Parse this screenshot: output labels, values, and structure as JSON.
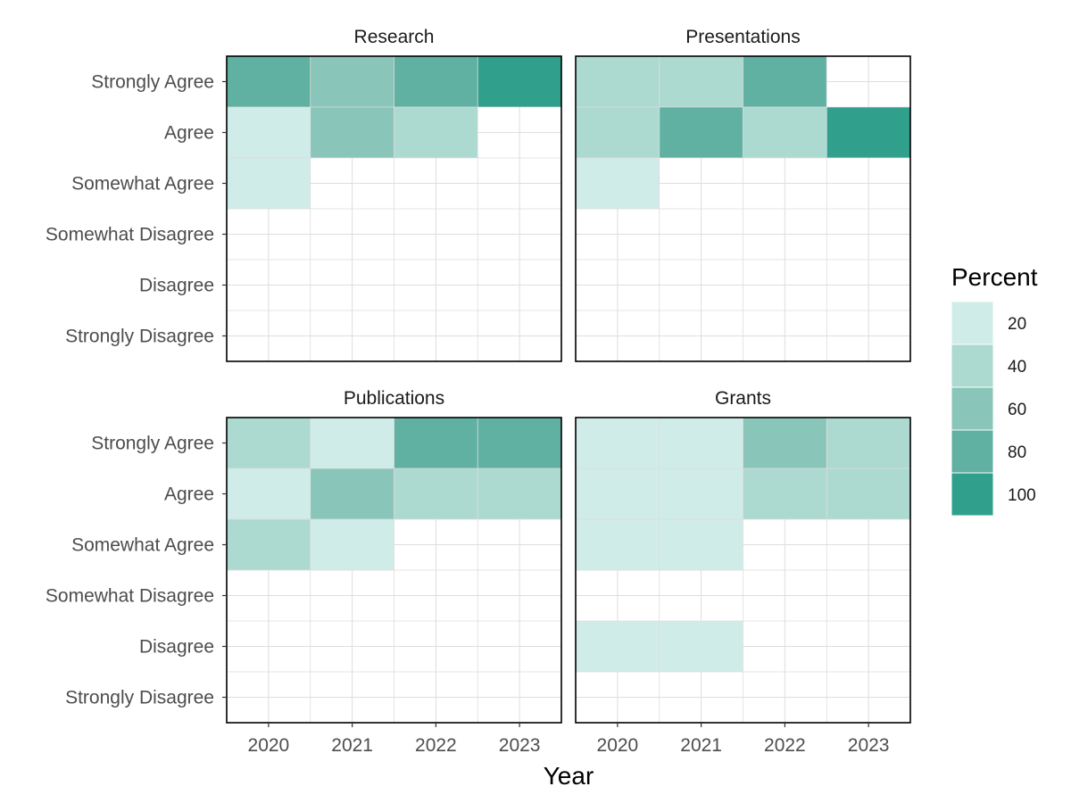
{
  "chart_data": {
    "type": "heatmap",
    "xlabel": "Year",
    "x_categories": [
      "2020",
      "2021",
      "2022",
      "2023"
    ],
    "y_categories": [
      "Strongly Agree",
      "Agree",
      "Somewhat Agree",
      "Somewhat Disagree",
      "Disagree",
      "Strongly Disagree"
    ],
    "grid": true,
    "legend": {
      "title": "Percent",
      "position": "right",
      "breaks": [
        20,
        40,
        60,
        80,
        100
      ],
      "colors": [
        "#d0ece8",
        "#acdad0",
        "#89c6b9",
        "#60b1a2",
        "#30a08c"
      ]
    },
    "facets": [
      {
        "title": "Research",
        "values": [
          [
            75,
            60,
            75,
            100
          ],
          [
            20,
            60,
            40,
            null
          ],
          [
            20,
            null,
            null,
            null
          ],
          [
            null,
            null,
            null,
            null
          ],
          [
            null,
            null,
            null,
            null
          ],
          [
            null,
            null,
            null,
            null
          ]
        ]
      },
      {
        "title": "Presentations",
        "values": [
          [
            40,
            40,
            75,
            null
          ],
          [
            40,
            75,
            40,
            100
          ],
          [
            20,
            null,
            null,
            null
          ],
          [
            null,
            null,
            null,
            null
          ],
          [
            null,
            null,
            null,
            null
          ],
          [
            null,
            null,
            null,
            null
          ]
        ]
      },
      {
        "title": "Publications",
        "values": [
          [
            40,
            20,
            75,
            75
          ],
          [
            20,
            60,
            40,
            40
          ],
          [
            40,
            20,
            null,
            null
          ],
          [
            null,
            null,
            null,
            null
          ],
          [
            null,
            null,
            null,
            null
          ],
          [
            null,
            null,
            null,
            null
          ]
        ]
      },
      {
        "title": "Grants",
        "values": [
          [
            20,
            20,
            60,
            40
          ],
          [
            20,
            20,
            40,
            40
          ],
          [
            20,
            20,
            null,
            null
          ],
          [
            null,
            null,
            null,
            null
          ],
          [
            20,
            20,
            null,
            null
          ],
          [
            null,
            null,
            null,
            null
          ]
        ]
      }
    ]
  }
}
